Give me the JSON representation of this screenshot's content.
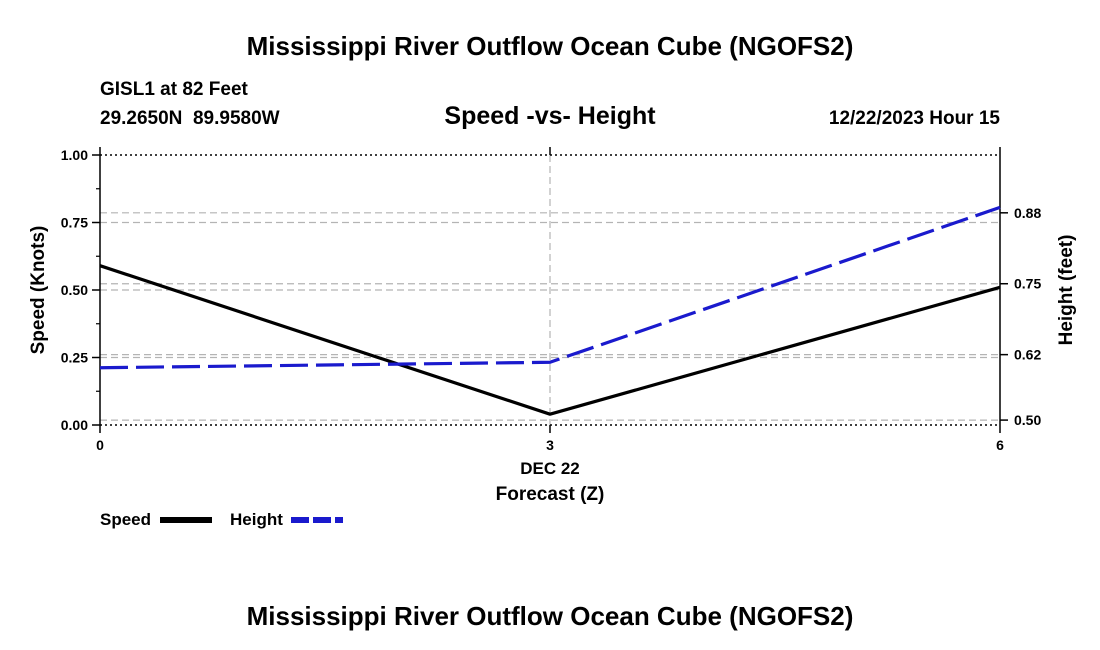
{
  "page": {
    "title": "Mississippi River Outflow Ocean Cube (NGOFS2)",
    "footer_title": "Mississippi River Outflow Ocean Cube (NGOFS2)",
    "station_name": "GISL1 at 82 Feet",
    "station_coords": "29.2650N  89.9580W",
    "date_label": "12/22/2023 Hour 15"
  },
  "colors": {
    "speed": "#000000",
    "height": "#1a1acd",
    "grid": "#b4b4b4"
  },
  "chart_data": {
    "type": "line",
    "title": "Speed -vs- Height",
    "xlabel": "Forecast (Z)",
    "xlim": [
      0,
      6
    ],
    "x_ticks": [
      0,
      3,
      6
    ],
    "x_tick_labels": [
      "0",
      "3",
      "6"
    ],
    "x_date_label": "DEC 22",
    "grid": true,
    "legend": "bottom-left",
    "y_left": {
      "label": "Speed (Knots)",
      "range": [
        0,
        1
      ],
      "ticks": [
        0,
        0.25,
        0.5,
        0.75,
        1
      ],
      "tick_labels": [
        "0.00",
        "0.25",
        "0.50",
        "0.75",
        "1.00"
      ]
    },
    "y_right": {
      "label": "Height (feet)",
      "range": [
        0.491,
        0.986
      ],
      "ticks": [
        0.5,
        0.62,
        0.75,
        0.88
      ],
      "tick_labels": [
        "0.50",
        "0.62",
        "0.75",
        "0.88"
      ]
    },
    "series": [
      {
        "name": "Speed",
        "axis": "left",
        "style": "solid",
        "x": [
          0,
          3,
          6
        ],
        "values": [
          0.59,
          0.04,
          0.51
        ]
      },
      {
        "name": "Height",
        "axis": "right",
        "style": "dashed",
        "x": [
          0,
          3,
          6
        ],
        "values": [
          0.596,
          0.606,
          0.89
        ]
      }
    ]
  }
}
